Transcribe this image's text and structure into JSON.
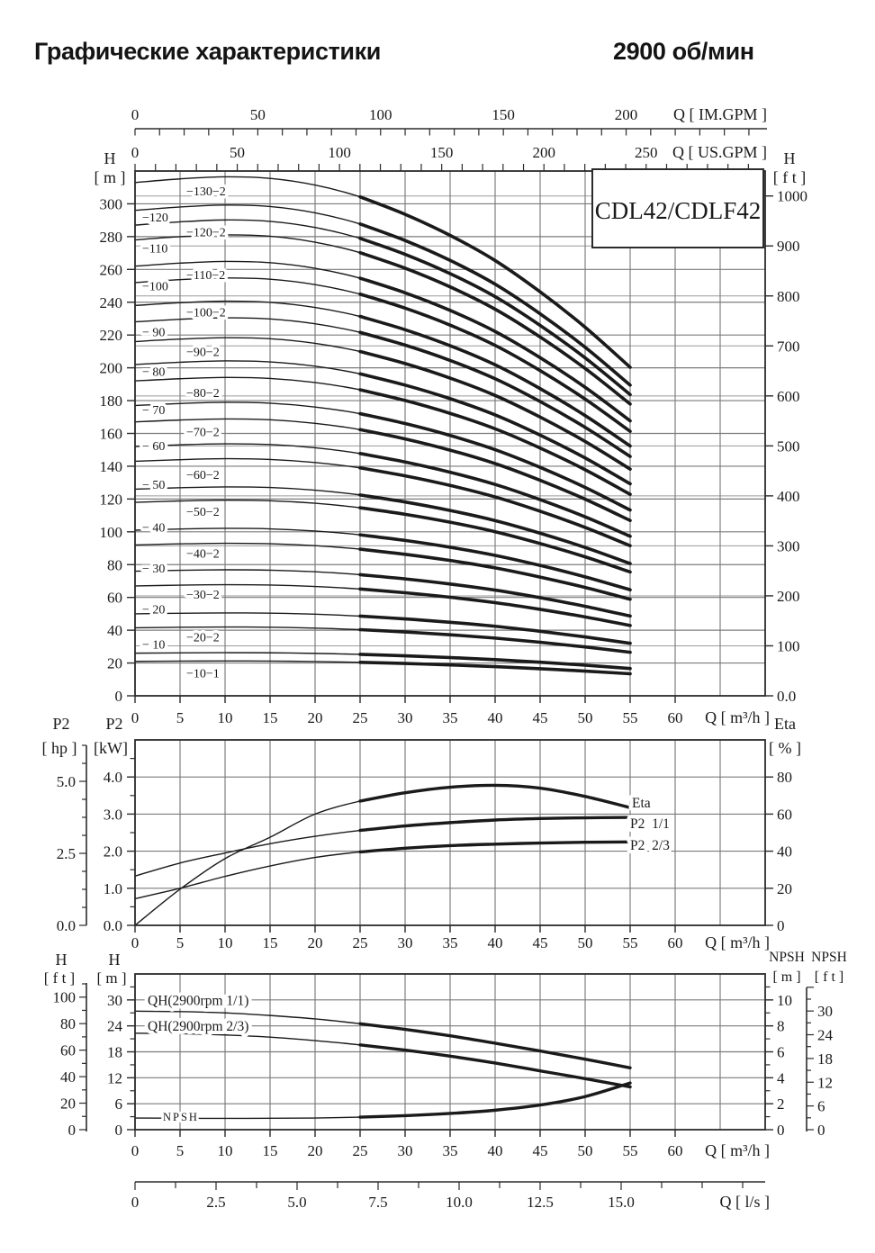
{
  "title": {
    "left": "Графические характеристики",
    "right": "2900 об/мин"
  },
  "model_box": {
    "label": "CDL42/CDLF42"
  },
  "colors": {
    "text": "#1a1a1a",
    "curve": "#1a1a1a",
    "grid": "#7b7b7b",
    "grid_light": "#9a9a9a",
    "border": "#2b2b2b",
    "background": "#ffffff"
  },
  "axes": {
    "im_gpm": {
      "label": "Q [ IM.GPM ]",
      "tick_labels": [
        "0",
        "50",
        "100",
        "150",
        "200"
      ],
      "tick_values": [
        0,
        50,
        100,
        150,
        200
      ],
      "minor_step": 10,
      "minor_max": 250
    },
    "us_gpm": {
      "label": "Q [ US.GPM ]",
      "tick_labels": [
        "0",
        "50",
        "100",
        "150",
        "200",
        "250"
      ],
      "tick_values": [
        0,
        50,
        100,
        150,
        200,
        250
      ],
      "minor_step": 10,
      "minor_max": 300
    },
    "main_left": {
      "title": "H",
      "unit": "[ m ]",
      "tick_values": [
        0,
        20,
        40,
        60,
        80,
        100,
        120,
        140,
        160,
        180,
        200,
        220,
        240,
        260,
        280,
        300
      ]
    },
    "main_right": {
      "title": "H",
      "unit": "[ f t ]",
      "tick_labels": [
        "0.0",
        "100",
        "200",
        "300",
        "400",
        "500",
        "600",
        "700",
        "800",
        "900",
        "1000"
      ],
      "tick_values": [
        0,
        100,
        200,
        300,
        400,
        500,
        600,
        700,
        800,
        900,
        1000
      ]
    },
    "main_x": {
      "label": "Q [ m³/h ]",
      "tick_values": [
        0,
        5,
        10,
        15,
        20,
        25,
        30,
        35,
        40,
        45,
        50,
        55,
        60
      ]
    },
    "p2_hp": {
      "title": "P2",
      "unit": "[ hp ]",
      "tick_labels": [
        "0.0",
        "2.5",
        "5.0"
      ],
      "tick_values": [
        0,
        2.5,
        5
      ]
    },
    "p2_kw": {
      "title": "P2",
      "unit": "[kW]",
      "tick_labels": [
        "0.0",
        "1.0",
        "2.0",
        "3.0",
        "4.0"
      ],
      "tick_values": [
        0,
        1,
        2,
        3,
        4
      ]
    },
    "eta_axis": {
      "title": "Eta",
      "unit": "[ % ]",
      "tick_values": [
        0,
        20,
        40,
        60,
        80
      ]
    },
    "mid_x": {
      "label": "Q [ m³/h ]",
      "tick_values": [
        0,
        5,
        10,
        15,
        20,
        25,
        30,
        35,
        40,
        45,
        50,
        55,
        60
      ]
    },
    "h_ft": {
      "title": "H",
      "unit": "[ f t ]",
      "tick_values": [
        0,
        20,
        40,
        60,
        80,
        100
      ]
    },
    "h_m": {
      "title": "H",
      "unit": "[ m ]",
      "tick_values": [
        0,
        6,
        12,
        18,
        24,
        30
      ]
    },
    "npsh_m": {
      "title": "NPSH",
      "unit": "[ m ]",
      "tick_values": [
        0,
        2,
        4,
        6,
        8,
        10
      ]
    },
    "npsh_ft": {
      "title": "NPSH",
      "unit": "[ f t ]",
      "tick_values": [
        0,
        6,
        12,
        18,
        24,
        30
      ]
    },
    "bottom_x": {
      "label": "Q [ m³/h ]",
      "tick_values": [
        0,
        5,
        10,
        15,
        20,
        25,
        30,
        35,
        40,
        45,
        50,
        55,
        60
      ]
    },
    "ls": {
      "label": "Q [ l/s ]",
      "tick_labels": [
        "0",
        "2.5",
        "5.0",
        "7.5",
        "10.0",
        "12.5",
        "15.0"
      ],
      "tick_values": [
        0,
        2.5,
        5,
        7.5,
        10,
        12.5,
        15
      ],
      "minor_step": 1.25
    }
  },
  "chart_data": [
    {
      "id": "head_curves",
      "type": "line",
      "title": "CDL42/CDLF42 Q-H curves 2900 rpm",
      "x_unit": "m³/h",
      "y_unit": "m",
      "x": [
        0,
        5,
        10,
        15,
        20,
        25,
        30,
        35,
        40,
        45,
        50,
        55
      ],
      "x_range": [
        0,
        70
      ],
      "y_range_m": [
        0,
        320
      ],
      "y_range_ft": [
        0,
        1050
      ],
      "bold_from_q": 25,
      "shape_multipliers": [
        1.0,
        1.007,
        1.011,
        1.008,
        0.995,
        0.972,
        0.938,
        0.897,
        0.848,
        0.787,
        0.718,
        0.64
      ],
      "series": [
        {
          "label": "−10−1",
          "shutoff_head_m": 21,
          "head_at_55_m": 13.4,
          "label_column": 2,
          "label_at_m": 14
        },
        {
          "label": "− 10",
          "shutoff_head_m": 26,
          "head_at_55_m": 16.6,
          "label_column": 1,
          "label_at_m": 31.5
        },
        {
          "label": "−20−2",
          "shutoff_head_m": 41.5,
          "head_at_55_m": 26.6,
          "label_column": 2,
          "label_at_m": 36
        },
        {
          "label": "− 20",
          "shutoff_head_m": 50,
          "head_at_55_m": 32.0,
          "label_column": 1,
          "label_at_m": 53
        },
        {
          "label": "−30−2",
          "shutoff_head_m": 67,
          "head_at_55_m": 42.9,
          "label_column": 2,
          "label_at_m": 62
        },
        {
          "label": "− 30",
          "shutoff_head_m": 76,
          "head_at_55_m": 48.6,
          "label_column": 1,
          "label_at_m": 78
        },
        {
          "label": "−40−2",
          "shutoff_head_m": 92,
          "head_at_55_m": 58.9,
          "label_column": 2,
          "label_at_m": 87
        },
        {
          "label": "− 40",
          "shutoff_head_m": 101,
          "head_at_55_m": 64.6,
          "label_column": 1,
          "label_at_m": 103
        },
        {
          "label": "−50−2",
          "shutoff_head_m": 118,
          "head_at_55_m": 75.5,
          "label_column": 2,
          "label_at_m": 112.5
        },
        {
          "label": "− 50",
          "shutoff_head_m": 126,
          "head_at_55_m": 80.6,
          "label_column": 1,
          "label_at_m": 129
        },
        {
          "label": "−60−2",
          "shutoff_head_m": 143,
          "head_at_55_m": 91.5,
          "label_column": 2,
          "label_at_m": 135
        },
        {
          "label": "− 60",
          "shutoff_head_m": 152,
          "head_at_55_m": 97.3,
          "label_column": 1,
          "label_at_m": 152.5
        },
        {
          "label": "−70−2",
          "shutoff_head_m": 167,
          "head_at_55_m": 106.9,
          "label_column": 2,
          "label_at_m": 161
        },
        {
          "label": "− 70",
          "shutoff_head_m": 177,
          "head_at_55_m": 113.3,
          "label_column": 1,
          "label_at_m": 174.5
        },
        {
          "label": "−80−2",
          "shutoff_head_m": 192,
          "head_at_55_m": 122.9,
          "label_column": 2,
          "label_at_m": 185
        },
        {
          "label": "− 80",
          "shutoff_head_m": 202,
          "head_at_55_m": 129.3,
          "label_column": 1,
          "label_at_m": 198
        },
        {
          "label": "−90−2",
          "shutoff_head_m": 216,
          "head_at_55_m": 138.2,
          "label_column": 2,
          "label_at_m": 210
        },
        {
          "label": "− 90",
          "shutoff_head_m": 228,
          "head_at_55_m": 145.9,
          "label_column": 1,
          "label_at_m": 222
        },
        {
          "label": "−100−2",
          "shutoff_head_m": 238,
          "head_at_55_m": 152.3,
          "label_column": 2,
          "label_at_m": 234
        },
        {
          "label": "−100",
          "shutoff_head_m": 252,
          "head_at_55_m": 161.3,
          "label_column": 1,
          "label_at_m": 250
        },
        {
          "label": "−110−2",
          "shutoff_head_m": 262,
          "head_at_55_m": 167.7,
          "label_column": 2,
          "label_at_m": 257
        },
        {
          "label": "−110",
          "shutoff_head_m": 278,
          "head_at_55_m": 177.9,
          "label_column": 1,
          "label_at_m": 273
        },
        {
          "label": "−120−2",
          "shutoff_head_m": 287,
          "head_at_55_m": 183.7,
          "label_column": 2,
          "label_at_m": 283
        },
        {
          "label": "−120",
          "shutoff_head_m": 296,
          "head_at_55_m": 189.4,
          "label_column": 1,
          "label_at_m": 292
        },
        {
          "label": "−130−2",
          "shutoff_head_m": 313,
          "head_at_55_m": 200.3,
          "label_column": 2,
          "label_at_m": 308
        }
      ]
    },
    {
      "id": "power_efficiency",
      "type": "line",
      "title": "P2 and efficiency",
      "x_unit": "m³/h",
      "x": [
        0,
        5,
        10,
        15,
        20,
        25,
        30,
        35,
        40,
        45,
        50,
        55
      ],
      "bold_from_q": 25,
      "kw_range": [
        0,
        5
      ],
      "eta_range": [
        0,
        100
      ],
      "series": [
        {
          "label": "Eta",
          "unit": "%",
          "values": [
            0,
            19.5,
            36,
            47.5,
            60,
            67,
            71.5,
            74.5,
            75.5,
            74,
            69.5,
            63.5
          ]
        },
        {
          "label": "P2  1/1",
          "unit": "kW",
          "values": [
            1.33,
            1.68,
            1.95,
            2.2,
            2.4,
            2.56,
            2.68,
            2.77,
            2.84,
            2.88,
            2.9,
            2.91
          ]
        },
        {
          "label": "P2  2/3",
          "unit": "kW",
          "values": [
            0.72,
            1.0,
            1.32,
            1.6,
            1.83,
            1.98,
            2.08,
            2.15,
            2.19,
            2.22,
            2.24,
            2.25
          ]
        }
      ]
    },
    {
      "id": "single_stage_and_npsh",
      "type": "line",
      "title": "Single stage QH and NPSH",
      "x_unit": "m³/h",
      "x": [
        0,
        5,
        10,
        15,
        20,
        25,
        30,
        35,
        40,
        45,
        50,
        55
      ],
      "bold_from_q": 25,
      "h_range_m": [
        0,
        36
      ],
      "npsh_range_m": [
        0,
        12
      ],
      "series": [
        {
          "label": "QH(2900rpm 1/1)",
          "unit": "m",
          "values": [
            27.4,
            27.3,
            27.0,
            26.4,
            25.6,
            24.5,
            23.2,
            21.7,
            20.0,
            18.2,
            16.3,
            14.3
          ]
        },
        {
          "label": "QH(2900rpm 2/3)",
          "unit": "m",
          "values": [
            22.3,
            22.2,
            21.9,
            21.4,
            20.6,
            19.6,
            18.4,
            17.0,
            15.4,
            13.6,
            11.8,
            9.9
          ]
        },
        {
          "label": "NPSH",
          "unit": "m",
          "values": [
            0.9,
            0.88,
            0.87,
            0.88,
            0.9,
            0.97,
            1.08,
            1.25,
            1.5,
            1.9,
            2.55,
            3.6
          ]
        }
      ]
    }
  ]
}
